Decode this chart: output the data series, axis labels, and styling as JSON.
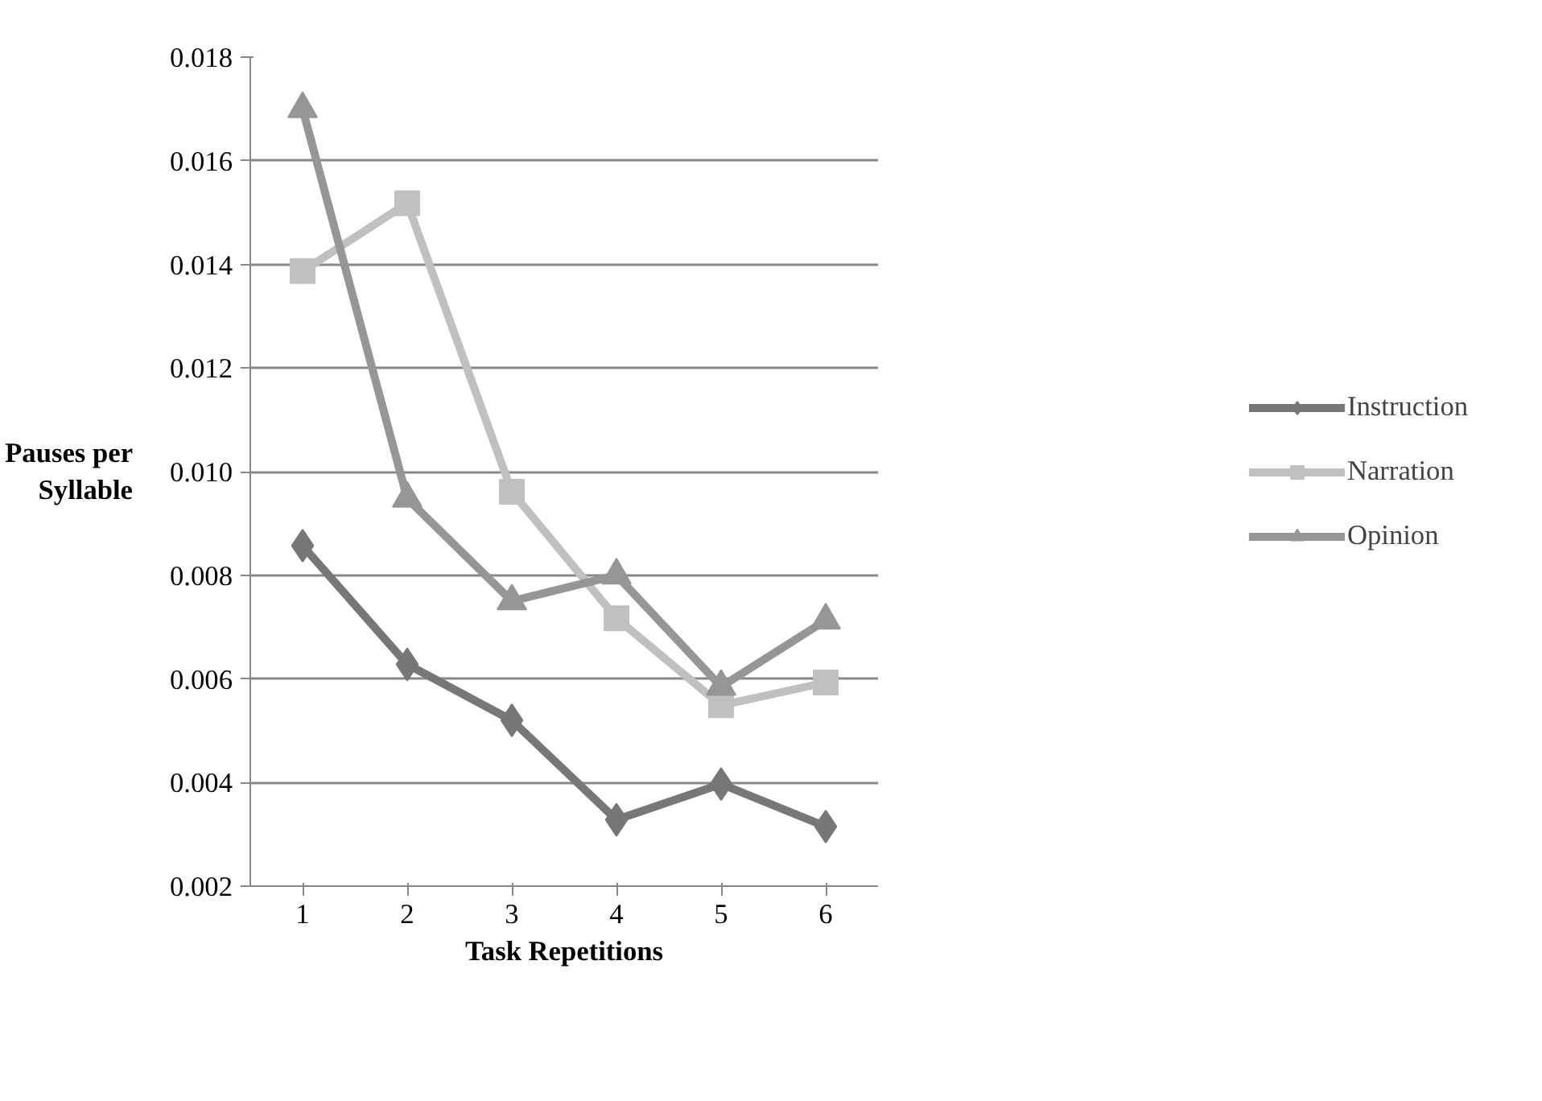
{
  "chart_data": {
    "type": "line",
    "xlabel": "Task Repetitions",
    "ylabel": "Pauses per\nSyllable",
    "categories": [
      "1",
      "2",
      "3",
      "4",
      "5",
      "6"
    ],
    "series": [
      {
        "name": "Instruction",
        "color": "#777777",
        "marker": "diamond",
        "values": [
          0.00857,
          0.00628,
          0.0052,
          0.00328,
          0.00397,
          0.00315
        ]
      },
      {
        "name": "Narration",
        "color": "#c0c0c0",
        "marker": "square",
        "values": [
          0.01387,
          0.01518,
          0.00961,
          0.00717,
          0.00549,
          0.00593
        ]
      },
      {
        "name": "Opinion",
        "color": "#969696",
        "marker": "triangle",
        "values": [
          0.017,
          0.00948,
          0.0075,
          0.008,
          0.00585,
          0.00713
        ]
      }
    ],
    "ylim": [
      0.002,
      0.018
    ],
    "yticks": [
      {
        "value": 0.002,
        "label": "0.002"
      },
      {
        "value": 0.004,
        "label": "0.004"
      },
      {
        "value": 0.006,
        "label": "0.006"
      },
      {
        "value": 0.008,
        "label": "0.008"
      },
      {
        "value": 0.01,
        "label": "0.010"
      },
      {
        "value": 0.012,
        "label": "0.012"
      },
      {
        "value": 0.014,
        "label": "0.014"
      },
      {
        "value": 0.016,
        "label": "0.016"
      },
      {
        "value": 0.018,
        "label": "0.018"
      }
    ],
    "grid": "y",
    "legend": "right",
    "line_style": "solid"
  }
}
